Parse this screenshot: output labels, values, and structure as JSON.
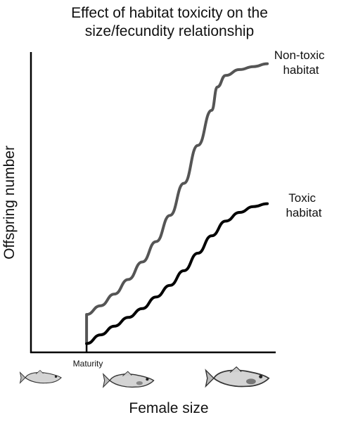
{
  "title_line1": "Effect of habitat toxicity on the",
  "title_line2": "size/fecundity relationship",
  "chart_data": {
    "type": "line",
    "title": "Effect of habitat toxicity on the size/fecundity relationship",
    "xlabel": "Female size",
    "ylabel": "Offspring number",
    "x_tick_labels": [],
    "y_tick_labels": [],
    "grid": false,
    "annotations": [
      {
        "text": "Maturity",
        "x": 0
      }
    ],
    "series": [
      {
        "name": "Non-toxic habitat",
        "label_lines": [
          "Non-toxic",
          "habitat"
        ],
        "color": "#555555",
        "x": [
          0,
          0,
          5,
          10,
          15,
          20,
          25,
          30,
          35,
          40,
          45,
          47,
          50,
          55,
          60,
          65
        ],
        "y": [
          0,
          10,
          13,
          17,
          22,
          28,
          35,
          44,
          55,
          68,
          80,
          88,
          92,
          94,
          95,
          96
        ]
      },
      {
        "name": "Toxic habitat",
        "label_lines": [
          "Toxic",
          "habitat"
        ],
        "color": "#000000",
        "x": [
          0,
          5,
          10,
          15,
          20,
          25,
          30,
          35,
          40,
          45,
          50,
          55,
          60,
          65
        ],
        "y": [
          0,
          3,
          6,
          9,
          12,
          16,
          20,
          25,
          31,
          37,
          42,
          45,
          47,
          48
        ]
      }
    ],
    "xlim": [
      -20,
      68
    ],
    "ylim": [
      -3,
      100
    ]
  },
  "fish_icons": [
    "small-female-fish-icon",
    "medium-female-fish-icon",
    "large-female-fish-icon"
  ]
}
